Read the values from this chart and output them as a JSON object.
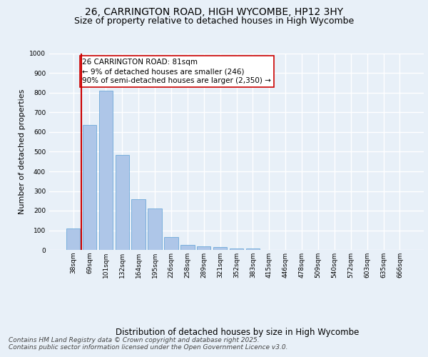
{
  "title_line1": "26, CARRINGTON ROAD, HIGH WYCOMBE, HP12 3HY",
  "title_line2": "Size of property relative to detached houses in High Wycombe",
  "xlabel": "Distribution of detached houses by size in High Wycombe",
  "ylabel": "Number of detached properties",
  "categories": [
    "38sqm",
    "69sqm",
    "101sqm",
    "132sqm",
    "164sqm",
    "195sqm",
    "226sqm",
    "258sqm",
    "289sqm",
    "321sqm",
    "352sqm",
    "383sqm",
    "415sqm",
    "446sqm",
    "478sqm",
    "509sqm",
    "540sqm",
    "572sqm",
    "603sqm",
    "635sqm",
    "666sqm"
  ],
  "values": [
    110,
    635,
    810,
    485,
    260,
    210,
    65,
    27,
    20,
    13,
    9,
    8,
    0,
    0,
    0,
    0,
    0,
    0,
    0,
    0,
    0
  ],
  "bar_color": "#aec6e8",
  "bar_edge_color": "#5a9fd4",
  "vline_color": "#cc0000",
  "annotation_text": "26 CARRINGTON ROAD: 81sqm\n← 9% of detached houses are smaller (246)\n90% of semi-detached houses are larger (2,350) →",
  "annotation_box_color": "#ffffff",
  "annotation_box_edge_color": "#cc0000",
  "ylim": [
    0,
    1000
  ],
  "yticks": [
    0,
    100,
    200,
    300,
    400,
    500,
    600,
    700,
    800,
    900,
    1000
  ],
  "background_color": "#e8f0f8",
  "plot_background_color": "#e8f0f8",
  "grid_color": "#ffffff",
  "footer_line1": "Contains HM Land Registry data © Crown copyright and database right 2025.",
  "footer_line2": "Contains public sector information licensed under the Open Government Licence v3.0.",
  "title_fontsize": 10,
  "subtitle_fontsize": 9,
  "tick_fontsize": 6.5,
  "xlabel_fontsize": 8.5,
  "ylabel_fontsize": 8,
  "footer_fontsize": 6.5,
  "annotation_fontsize": 7.5
}
